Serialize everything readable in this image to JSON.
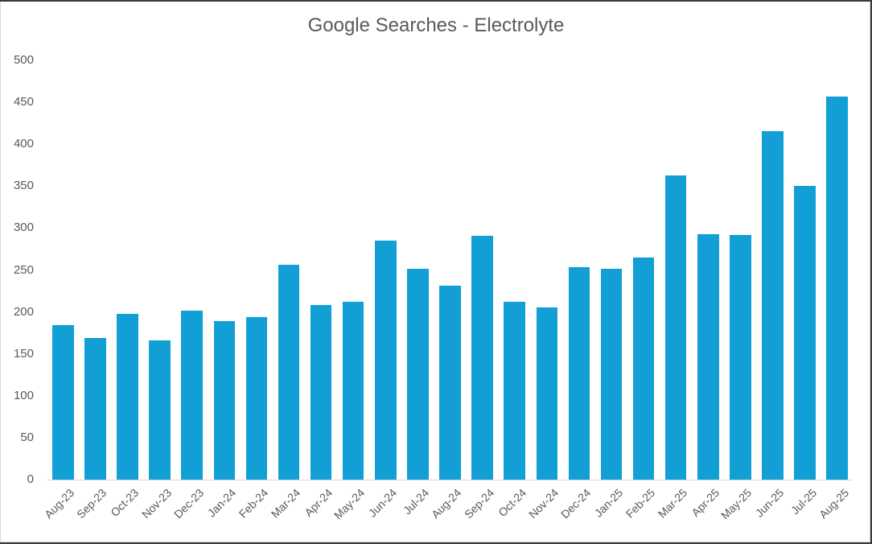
{
  "chart_data": {
    "type": "bar",
    "title": "Google Searches - Electrolyte",
    "xlabel": "",
    "ylabel": "",
    "ylim": [
      0,
      500
    ],
    "yticks": [
      0,
      50,
      100,
      150,
      200,
      250,
      300,
      350,
      400,
      450,
      500
    ],
    "grid": false,
    "legend": null,
    "bar_color": "#119fd6",
    "categories": [
      "Aug-23",
      "Sep-23",
      "Oct-23",
      "Nov-23",
      "Dec-23",
      "Jan-24",
      "Feb-24",
      "Mar-24",
      "Apr-24",
      "May-24",
      "Jun-24",
      "Jul-24",
      "Aug-24",
      "Sep-24",
      "Oct-24",
      "Nov-24",
      "Dec-24",
      "Jan-25",
      "Feb-25",
      "Mar-25",
      "Apr-25",
      "May-25",
      "Jun-25",
      "Jul-25",
      "Aug-25"
    ],
    "values": [
      184,
      169,
      198,
      166,
      202,
      189,
      194,
      256,
      208,
      212,
      285,
      251,
      231,
      291,
      212,
      205,
      253,
      251,
      265,
      363,
      293,
      292,
      416,
      350,
      457
    ]
  }
}
